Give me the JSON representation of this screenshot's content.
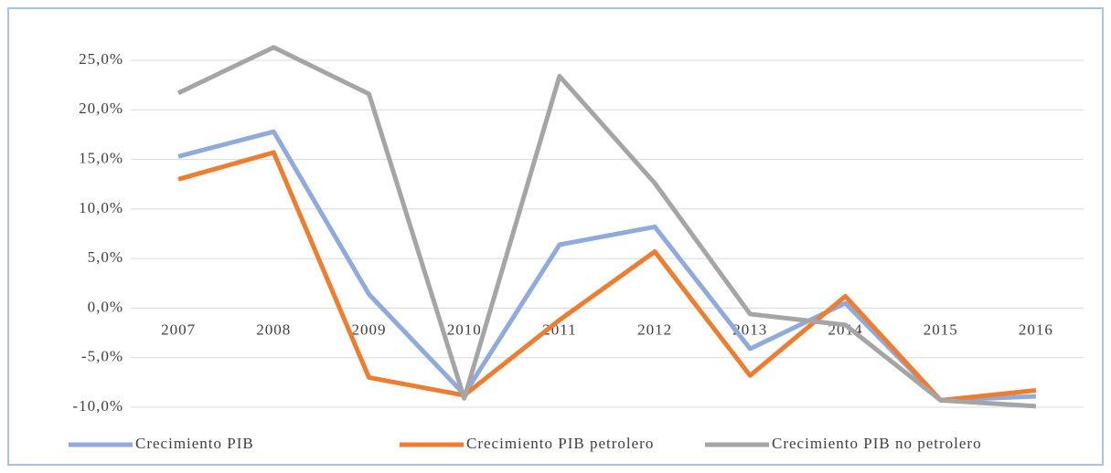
{
  "chart_data": {
    "type": "line",
    "categories": [
      "2007",
      "2008",
      "2009",
      "2010",
      "2011",
      "2012",
      "2013",
      "2014",
      "2015",
      "2016"
    ],
    "series": [
      {
        "name": "Crecimiento PIB",
        "color": "#8faadc",
        "values": [
          15.3,
          17.8,
          1.4,
          -8.7,
          6.4,
          8.2,
          -4.1,
          0.5,
          -9.3,
          -8.9
        ]
      },
      {
        "name": "Crecimiento PIB petrolero",
        "color": "#ed7d31",
        "values": [
          13.0,
          15.7,
          -7.0,
          -8.8,
          -1.2,
          5.7,
          -6.8,
          1.2,
          -9.3,
          -8.3
        ]
      },
      {
        "name": "Crecimiento PIB no petrolero",
        "color": "#a5a5a5",
        "values": [
          21.7,
          26.3,
          21.6,
          -9.1,
          23.4,
          12.6,
          -0.6,
          -1.7,
          -9.3,
          -9.9
        ]
      }
    ],
    "ylim": [
      -10,
      25
    ],
    "yticks": [
      {
        "value": -10,
        "label": "-10,0%"
      },
      {
        "value": -5,
        "label": "-5,0%"
      },
      {
        "value": 0,
        "label": "0,0%"
      },
      {
        "value": 5,
        "label": "5,0%"
      },
      {
        "value": 10,
        "label": "10,0%"
      },
      {
        "value": 15,
        "label": "15,0%"
      },
      {
        "value": 20,
        "label": "20,0%"
      },
      {
        "value": 25,
        "label": "25,0%"
      }
    ],
    "grid": true,
    "legend": "bottom"
  }
}
